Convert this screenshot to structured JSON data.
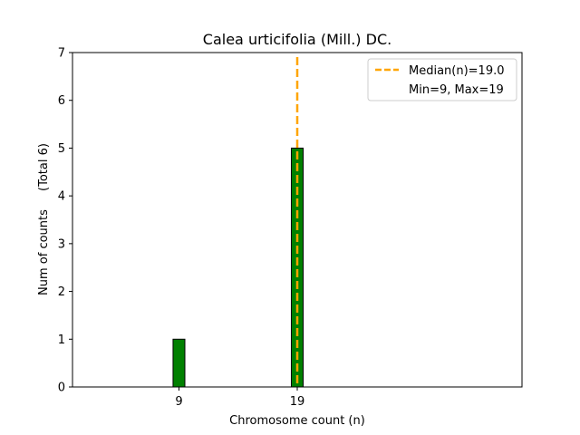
{
  "chart_data": {
    "type": "bar",
    "title": "Calea urticifolia (Mill.) DC.",
    "xlabel": "Chromosome count (n)",
    "ylabel": "Num of counts",
    "ylabel_total": "(Total 6)",
    "xlim": [
      0,
      38
    ],
    "ylim": [
      0,
      7
    ],
    "x_ticks": [
      "9",
      "19"
    ],
    "y_ticks": [
      "0",
      "1",
      "2",
      "3",
      "4",
      "5",
      "6",
      "7"
    ],
    "bar_width": 1,
    "bars": [
      {
        "x": 9,
        "value": 1
      },
      {
        "x": 19,
        "value": 5
      }
    ],
    "bar_color": "#008000",
    "bar_edge_color": "#000000",
    "median_line": {
      "x": 19,
      "color": "#FFA500",
      "label": "Median(n)=19.0"
    },
    "legend": {
      "placement": "top-right",
      "entries": [
        "Median(n)=19.0",
        "Min=9, Max=19"
      ]
    },
    "grid": false
  }
}
